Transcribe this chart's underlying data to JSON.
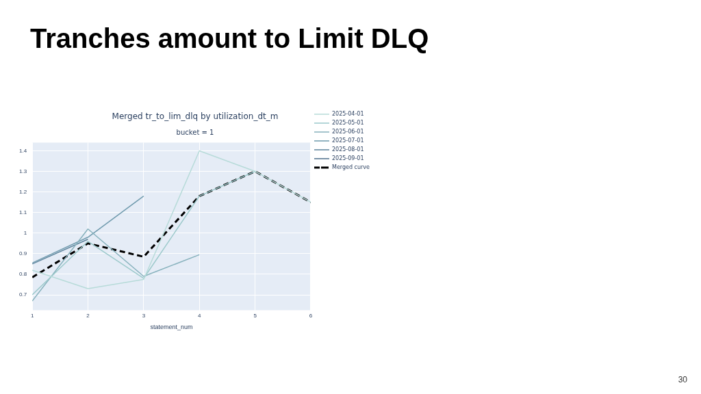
{
  "chart_data": {
    "type": "line",
    "title": "Tranches amount to Limit DLQ",
    "subtitle": "Merged tr_to_lim_dlq by utilization_dt_m",
    "xlabel": "statement_num",
    "x": [
      1,
      2,
      3,
      4,
      5,
      6
    ],
    "xlim": [
      1,
      6
    ],
    "xticks": [
      1,
      2,
      3,
      4,
      5,
      6
    ],
    "ylim": [
      0.625,
      1.44
    ],
    "yticks": [
      0.7,
      0.8,
      0.9,
      1,
      1.1,
      1.2,
      1.3,
      1.4
    ],
    "grid": true,
    "legend": "top right",
    "marker": "none",
    "line_style": "solid",
    "series": [
      {
        "name": "2025-04-01",
        "color": "#b7dbd9",
        "values": [
          0.82,
          0.73,
          0.775,
          1.4,
          1.3,
          1.15
        ]
      },
      {
        "name": "2025-05-01",
        "color": "#9cc9cb",
        "values": [
          0.7,
          0.96,
          0.78,
          1.18,
          1.3,
          null
        ]
      },
      {
        "name": "2025-06-01",
        "color": "#86b1bc",
        "values": [
          0.67,
          1.02,
          0.79,
          0.895,
          null,
          null
        ]
      },
      {
        "name": "2025-07-01",
        "color": "#6f9aad",
        "values": [
          0.855,
          0.98,
          1.18,
          null,
          null,
          null
        ]
      },
      {
        "name": "2025-08-01",
        "color": "#5d849c",
        "values": [
          0.85,
          0.97,
          null,
          null,
          null,
          null
        ]
      },
      {
        "name": "2025-09-01",
        "color": "#4d6f8a",
        "values": [
          null,
          null,
          null,
          null,
          null,
          null
        ]
      },
      {
        "name": "Merged curve",
        "color": "#000000",
        "line_style": "dashed",
        "values": [
          0.785,
          0.95,
          0.885,
          1.18,
          1.3,
          1.15
        ]
      }
    ],
    "annotations": [
      "bucket = 1",
      "30"
    ]
  }
}
